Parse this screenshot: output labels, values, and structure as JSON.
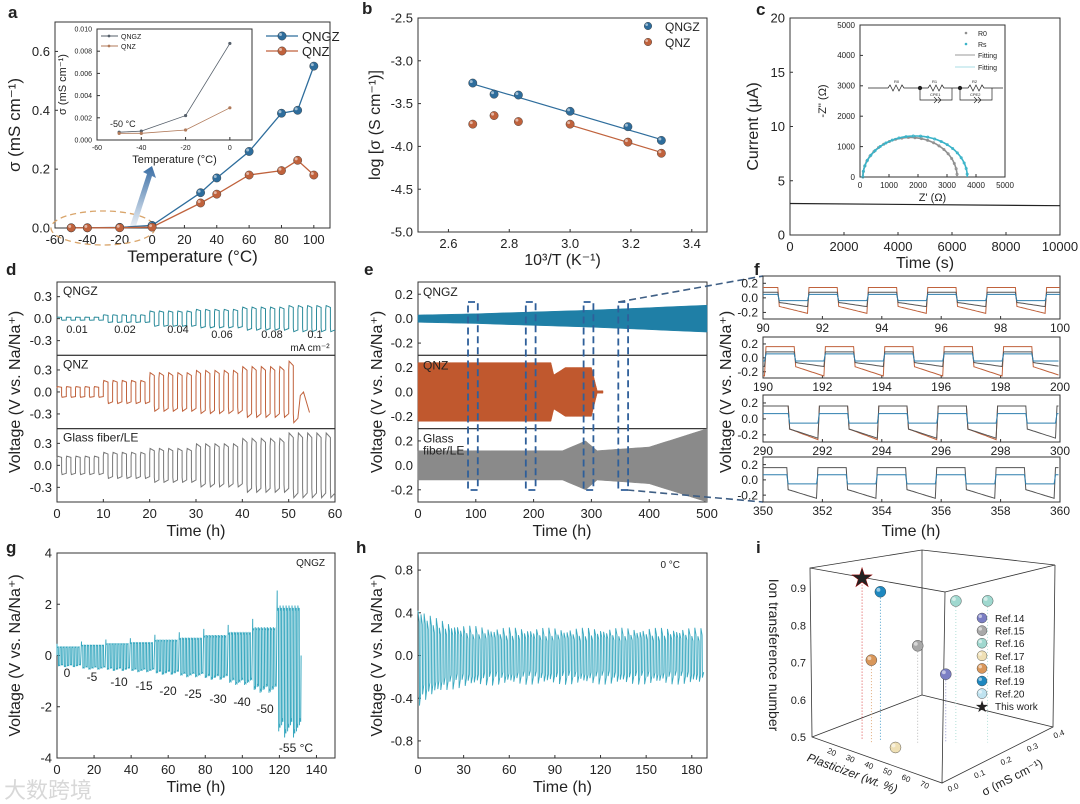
{
  "figure": {
    "panel_labels": [
      "a",
      "b",
      "c",
      "d",
      "e",
      "f",
      "g",
      "h",
      "i"
    ],
    "watermark": "大数跨境"
  },
  "chart_data": [
    {
      "panel": "a",
      "type": "line",
      "xlabel": "Temperature (°C)",
      "ylabel": "σ (mS cm⁻¹)",
      "xlim": [
        -60,
        110
      ],
      "ylim": [
        0,
        0.7
      ],
      "xticks": [
        "-60",
        "-40",
        "-20",
        "0",
        "20",
        "40",
        "60",
        "80",
        "100"
      ],
      "yticks": [
        "0.0",
        "0.2",
        "0.4",
        "0.6"
      ],
      "legend": "top-right",
      "series": [
        {
          "name": "QNGZ",
          "color": "#2e6d9c",
          "x": [
            -50,
            -40,
            -20,
            0,
            30,
            40,
            60,
            80,
            90,
            100
          ],
          "y": [
            0.0007,
            0.0008,
            0.0022,
            0.0087,
            0.12,
            0.17,
            0.26,
            0.39,
            0.4,
            0.55
          ]
        },
        {
          "name": "QNZ",
          "color": "#c0623c",
          "x": [
            -50,
            -40,
            -20,
            0,
            30,
            40,
            60,
            80,
            90,
            100
          ],
          "y": [
            0.0006,
            0.0006,
            0.0009,
            0.0029,
            0.085,
            0.115,
            0.18,
            0.195,
            0.23,
            0.18
          ]
        }
      ]
    },
    {
      "panel": "a-inset",
      "type": "line",
      "xlabel": "Temperature (°C)",
      "ylabel": "σ (mS cm⁻¹)",
      "xlim": [
        -60,
        10
      ],
      "ylim": [
        0,
        0.01
      ],
      "xticks": [
        "-60",
        "-40",
        "-20",
        "0"
      ],
      "yticks": [
        "0.000",
        "0.002",
        "0.004",
        "0.006",
        "0.008",
        "0.010"
      ],
      "annotation": "-50 °C",
      "legend": "top-left",
      "series": [
        {
          "name": "QNGZ",
          "color": "#555f6a",
          "x": [
            -50,
            -40,
            -20,
            0
          ],
          "y": [
            0.0007,
            0.0008,
            0.0022,
            0.0087
          ]
        },
        {
          "name": "QNZ",
          "color": "#b07a5a",
          "x": [
            -50,
            -40,
            -20,
            0
          ],
          "y": [
            0.0006,
            0.0006,
            0.0009,
            0.0029
          ]
        }
      ]
    },
    {
      "panel": "b",
      "type": "scatter",
      "xlabel": "10³/T (K⁻¹)",
      "ylabel": "log [σ (S cm⁻¹)]",
      "xlim": [
        2.5,
        3.45
      ],
      "ylim": [
        -5.0,
        -2.5
      ],
      "xticks": [
        "2.6",
        "2.8",
        "3.0",
        "3.2",
        "3.4"
      ],
      "yticks": [
        "-2.5",
        "-3.0",
        "-3.5",
        "-4.0",
        "-4.5",
        "-5.0"
      ],
      "legend": "top-right",
      "series": [
        {
          "name": "QNGZ",
          "color": "#2e6d9c",
          "x": [
            2.68,
            2.75,
            2.83,
            3.0,
            3.19,
            3.3
          ],
          "y": [
            -3.26,
            -3.39,
            -3.4,
            -3.59,
            -3.77,
            -3.93
          ],
          "fit": [
            [
              2.68,
              -3.27
            ],
            [
              3.3,
              -3.92
            ]
          ]
        },
        {
          "name": "QNZ",
          "color": "#c0623c",
          "x": [
            2.68,
            2.75,
            2.83,
            3.0,
            3.19,
            3.3
          ],
          "y": [
            -3.74,
            -3.64,
            -3.71,
            -3.74,
            -3.95,
            -4.08
          ],
          "fit": [
            [
              3.0,
              -3.75
            ],
            [
              3.3,
              -4.07
            ]
          ]
        }
      ]
    },
    {
      "panel": "c",
      "type": "line",
      "xlabel": "Time (s)",
      "ylabel": "Current (μA)",
      "xlim": [
        0,
        10000
      ],
      "ylim": [
        0,
        20
      ],
      "xticks": [
        "0",
        "2000",
        "4000",
        "6000",
        "8000",
        "10000"
      ],
      "yticks": [
        "0",
        "5",
        "10",
        "15",
        "20"
      ],
      "series": [
        {
          "name": "Current",
          "color": "#222",
          "x": [
            0,
            10000
          ],
          "y": [
            2.9,
            2.7
          ]
        }
      ]
    },
    {
      "panel": "c-inset",
      "type": "scatter",
      "xlabel": "Z' (Ω)",
      "ylabel": "-Z'' (Ω)",
      "xlim": [
        0,
        5000
      ],
      "ylim": [
        0,
        5000
      ],
      "xticks": [
        "0",
        "1000",
        "2000",
        "3000",
        "4000",
        "5000"
      ],
      "yticks": [
        "0",
        "1000",
        "2000",
        "3000",
        "4000",
        "5000"
      ],
      "legend_labels": [
        "R0",
        "Rs",
        "Fitting",
        "Fitting"
      ],
      "circuit_labels": [
        "R0",
        "R1",
        "CPE1",
        "R2",
        "CPE2"
      ],
      "series": [
        {
          "name": "R0",
          "color": "#8f8f8f",
          "start": 100,
          "end": 3350,
          "peak": 1300
        },
        {
          "name": "Rs",
          "color": "#3ab3c8",
          "start": 100,
          "end": 3700,
          "peak": 1350
        }
      ]
    },
    {
      "panel": "d",
      "type": "line",
      "xlabel": "Time (h)",
      "ylabel": "Voltage (V vs. Na/Na⁺)",
      "xlim": [
        0,
        60
      ],
      "xticks": [
        "0",
        "10",
        "20",
        "30",
        "40",
        "50",
        "60"
      ],
      "current_densities": [
        "0.01",
        "0.02",
        "0.04",
        "0.06",
        "0.08",
        "0.1"
      ],
      "current_unit": "mA cm⁻²",
      "segment_hours": 10,
      "half_cycle_hours": 1,
      "subplots": [
        {
          "label": "QNGZ",
          "color": "#2a8a9a",
          "ylim": [
            -0.5,
            0.5
          ],
          "yticks": [
            "0.3",
            "0.0",
            "-0.3"
          ],
          "amplitudes": [
            0.02,
            0.05,
            0.1,
            0.12,
            0.15,
            0.17
          ],
          "end_time": 60
        },
        {
          "label": "QNZ",
          "color": "#c0623c",
          "ylim": [
            -0.5,
            0.5
          ],
          "yticks": [
            "0.3",
            "0.0",
            "-0.3"
          ],
          "amplitudes": [
            0.07,
            0.15,
            0.25,
            0.28,
            0.33,
            0.4
          ],
          "end_time": 52
        },
        {
          "label": "Glass fiber/LE",
          "color": "#777",
          "ylim": [
            -0.5,
            0.5
          ],
          "yticks": [
            "0.3",
            "0.0",
            "-0.3"
          ],
          "amplitudes": [
            0.12,
            0.17,
            0.22,
            0.28,
            0.35,
            0.42
          ],
          "end_time": 60
        }
      ]
    },
    {
      "panel": "e",
      "type": "area",
      "xlabel": "Time (h)",
      "ylabel": "Voltage (V vs. Na/Na⁺)",
      "xlim": [
        0,
        500
      ],
      "xticks": [
        "0",
        "100",
        "200",
        "300",
        "400",
        "500"
      ],
      "zoom_windows_h": [
        [
          90,
          100
        ],
        [
          190,
          200
        ],
        [
          290,
          300
        ],
        [
          350,
          360
        ]
      ],
      "subplots": [
        {
          "label_lines": [
            "QNGZ"
          ],
          "color": "#1f7fa6",
          "ylim": [
            -0.3,
            0.3
          ],
          "yticks": [
            "0.2",
            "0.0",
            "-0.2"
          ],
          "envelope": [
            [
              0,
              0.03
            ],
            [
              100,
              0.04
            ],
            [
              300,
              0.07
            ],
            [
              500,
              0.11
            ]
          ]
        },
        {
          "label_lines": [
            "QNZ"
          ],
          "color": "#c0582e",
          "ylim": [
            -0.3,
            0.3
          ],
          "yticks": [
            "0.2",
            "0.0",
            "-0.2"
          ],
          "envelope": [
            [
              0,
              0.24
            ],
            [
              230,
              0.24
            ],
            [
              235,
              0.14
            ],
            [
              255,
              0.2
            ],
            [
              300,
              0.2
            ],
            [
              310,
              0.01
            ],
            [
              320,
              0.01
            ]
          ]
        },
        {
          "label_lines": [
            "Glass",
            "fiber/LE"
          ],
          "color": "#8a8a8a",
          "ylim": [
            -0.3,
            0.3
          ],
          "yticks": [
            "0.2",
            "0.0",
            "-0.2"
          ],
          "envelope": [
            [
              0,
              0.12
            ],
            [
              250,
              0.12
            ],
            [
              290,
              0.2
            ],
            [
              310,
              0.12
            ],
            [
              400,
              0.15
            ],
            [
              500,
              0.3
            ]
          ]
        }
      ]
    },
    {
      "panel": "f",
      "type": "line",
      "xlabel": "Time (h)",
      "ylabel": "Voltage (V vs. Na/Na⁺)",
      "yticks": [
        "0.2",
        "0.0",
        "-0.2"
      ],
      "ylim": [
        -0.29,
        0.3
      ],
      "subplots": [
        {
          "xlim": [
            90,
            100
          ],
          "xticks": [
            "90",
            "92",
            "94",
            "96",
            "98",
            "100"
          ],
          "phase_h": 0.5,
          "series": [
            {
              "name": "QNZ",
              "color": "#c0623c",
              "amp": 0.15,
              "sag": 0.05
            },
            {
              "name": "Glass fiber/LE",
              "color": "#555",
              "amp": 0.08,
              "sag": 0.03
            },
            {
              "name": "QNGZ",
              "color": "#2e7fae",
              "amp": 0.05,
              "sag": 0
            }
          ]
        },
        {
          "xlim": [
            190,
            200
          ],
          "xticks": [
            "190",
            "192",
            "194",
            "196",
            "198",
            "200"
          ],
          "phase_h": 1.1,
          "series": [
            {
              "name": "QNZ",
              "color": "#c0623c",
              "amp": 0.17,
              "sag": 0.07
            },
            {
              "name": "Glass fiber/LE",
              "color": "#555",
              "amp": 0.09,
              "sag": 0.03
            },
            {
              "name": "QNGZ",
              "color": "#2e7fae",
              "amp": 0.06,
              "sag": 0
            }
          ]
        },
        {
          "xlim": [
            290,
            300
          ],
          "xticks": [
            "290",
            "292",
            "294",
            "296",
            "298",
            "300"
          ],
          "phase_h": 0.9,
          "series": [
            {
              "name": "QNZ",
              "color": "#c0623c",
              "amp": 0.17,
              "sag": 0.07
            },
            {
              "name": "Glass fiber/LE",
              "color": "#555",
              "amp": 0.17,
              "sag": 0.06
            },
            {
              "name": "QNGZ",
              "color": "#2e7fae",
              "amp": 0.07,
              "sag": 0
            }
          ]
        },
        {
          "xlim": [
            350,
            360
          ],
          "xticks": [
            "350",
            "352",
            "354",
            "356",
            "358",
            "360"
          ],
          "phase_h": 0.85,
          "series": [
            {
              "name": "Glass fiber/LE",
              "color": "#555",
              "amp": 0.17,
              "sag": 0.06
            },
            {
              "name": "QNGZ",
              "color": "#2e7fae",
              "amp": 0.07,
              "sag": 0
            }
          ]
        }
      ]
    },
    {
      "panel": "g",
      "type": "line",
      "xlabel": "Time (h)",
      "ylabel": "Voltage (V vs. Na/Na⁺)",
      "xlim": [
        0,
        150
      ],
      "ylim": [
        -4,
        4
      ],
      "xticks": [
        "0",
        "20",
        "40",
        "60",
        "80",
        "100",
        "120",
        "140"
      ],
      "yticks": [
        "4",
        "2",
        "0",
        "-2",
        "-4"
      ],
      "series_label": "QNGZ",
      "color": "#3aa9c0",
      "temperatures": [
        "0",
        "-5",
        "-10",
        "-15",
        "-20",
        "-25",
        "-30",
        "-40",
        "-50",
        "-55 °C"
      ],
      "segment_hours": 13.2,
      "upper": [
        0.35,
        0.42,
        0.48,
        0.52,
        0.62,
        0.7,
        0.8,
        0.92,
        1.1,
        1.95
      ],
      "lower": [
        -0.45,
        -0.55,
        -0.6,
        -0.65,
        -0.75,
        -0.85,
        -0.95,
        -1.15,
        -1.45,
        -3.2
      ]
    },
    {
      "panel": "h",
      "type": "line",
      "xlabel": "Time (h)",
      "ylabel": "Voltage (V vs. Na/Na⁺)",
      "xlim": [
        0,
        190
      ],
      "ylim": [
        -0.96,
        0.96
      ],
      "xticks": [
        "0",
        "30",
        "60",
        "90",
        "120",
        "150",
        "180"
      ],
      "yticks": [
        "0.8",
        "0.4",
        "0.0",
        "-0.4",
        "-0.8"
      ],
      "annotation": "0 °C",
      "color": "#3aa9c0",
      "amplitude_start": 0.42,
      "amplitude_steady": 0.22
    },
    {
      "panel": "i",
      "type": "scatter3d",
      "xlabel": "Plasticizer (wt. %)",
      "ylabel": "σ (mS cm⁻¹)",
      "zlabel": "Ion transference number",
      "xticks": [
        "20",
        "30",
        "40",
        "50",
        "60",
        "70"
      ],
      "yticks": [
        "0.0",
        "0.1",
        "0.2",
        "0.3",
        "0.4"
      ],
      "zticks": [
        "0.5",
        "0.6",
        "0.7",
        "0.8",
        "0.9"
      ],
      "legend": "right",
      "series": [
        {
          "name": "Ref.14",
          "color": "#7b7fc4",
          "points": [
            [
              55,
              0.19,
              0.68
            ]
          ]
        },
        {
          "name": "Ref.15",
          "color": "#a8a8a8",
          "points": [
            [
              47,
              0.14,
              0.76
            ]
          ]
        },
        {
          "name": "Ref.16",
          "color": "#9fd8cf",
          "points": [
            [
              59,
              0.2,
              0.88
            ],
            [
              69,
              0.25,
              0.88
            ]
          ]
        },
        {
          "name": "Ref.17",
          "color": "#efe0b5",
          "points": [
            [
              43,
              0.084,
              0.5
            ]
          ]
        },
        {
          "name": "Ref.18",
          "color": "#d9975a",
          "points": [
            [
              32,
              0.07,
              0.72
            ]
          ]
        },
        {
          "name": "Ref.19",
          "color": "#1e88c0",
          "points": [
            [
              34,
              0.09,
              0.9
            ]
          ]
        },
        {
          "name": "Ref.20",
          "color": "#bfe3f0",
          "points": []
        },
        {
          "name": "This work",
          "color": "#d62020",
          "points": [
            [
              27,
              0.07,
              0.93
            ]
          ]
        }
      ]
    }
  ]
}
